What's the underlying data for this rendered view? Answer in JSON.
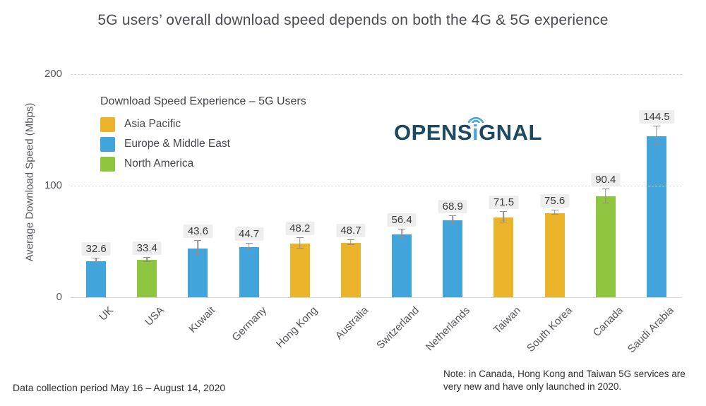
{
  "title": "5G users’ overall download speed depends on both the 4G & 5G experience",
  "logo": {
    "left": "OPENS",
    "i": "i",
    "right": "GNAL"
  },
  "legend": {
    "title": "Download Speed Experience – 5G Users",
    "items": [
      {
        "label": "Asia Pacific",
        "color": "#ebb32a"
      },
      {
        "label": "Europe & Middle East",
        "color": "#41a5dc"
      },
      {
        "label": "North America",
        "color": "#8fc640"
      }
    ]
  },
  "chart_data": {
    "type": "bar",
    "title": "5G users’ overall download speed depends on both the 4G & 5G experience",
    "xlabel": "",
    "ylabel": "Average Download Speed (Mbps)",
    "ylim": [
      0,
      200
    ],
    "yticks": [
      0,
      100,
      200
    ],
    "grid": "horizontal dashed gridlines at 100 and 200, solid baseline at 0",
    "legend_position": "top-left inside plot area",
    "categories": [
      "UK",
      "USA",
      "Kuwait",
      "Germany",
      "Hong Kong",
      "Australia",
      "Switzerland",
      "Netherlands",
      "Taiwan",
      "South Korea",
      "Canada",
      "Saudi Arabia"
    ],
    "values": [
      32.6,
      33.4,
      43.6,
      44.7,
      48.2,
      48.7,
      56.4,
      68.9,
      71.5,
      75.6,
      90.4,
      144.5
    ],
    "error_bars_approx": [
      1.5,
      1.5,
      6.5,
      2.5,
      4.5,
      2,
      3.5,
      3.5,
      4.5,
      1.5,
      6,
      8
    ],
    "regions": [
      "Europe & Middle East",
      "North America",
      "Europe & Middle East",
      "Europe & Middle East",
      "Asia Pacific",
      "Asia Pacific",
      "Europe & Middle East",
      "Europe & Middle East",
      "Asia Pacific",
      "Asia Pacific",
      "North America",
      "Europe & Middle East"
    ]
  },
  "footer": {
    "left": "Data collection period May 16 – August 14, 2020",
    "note": "Note: in Canada, Hong Kong and Taiwan 5G services are very new and have only launched in 2020."
  },
  "colors": {
    "error_bar": "#8f8f8f",
    "grid": "#dadada",
    "value_label_bg": "#eeeeee",
    "title_text": "#4b4b53",
    "logo_navy": "#1e4a61",
    "logo_blue": "#45a6db"
  }
}
